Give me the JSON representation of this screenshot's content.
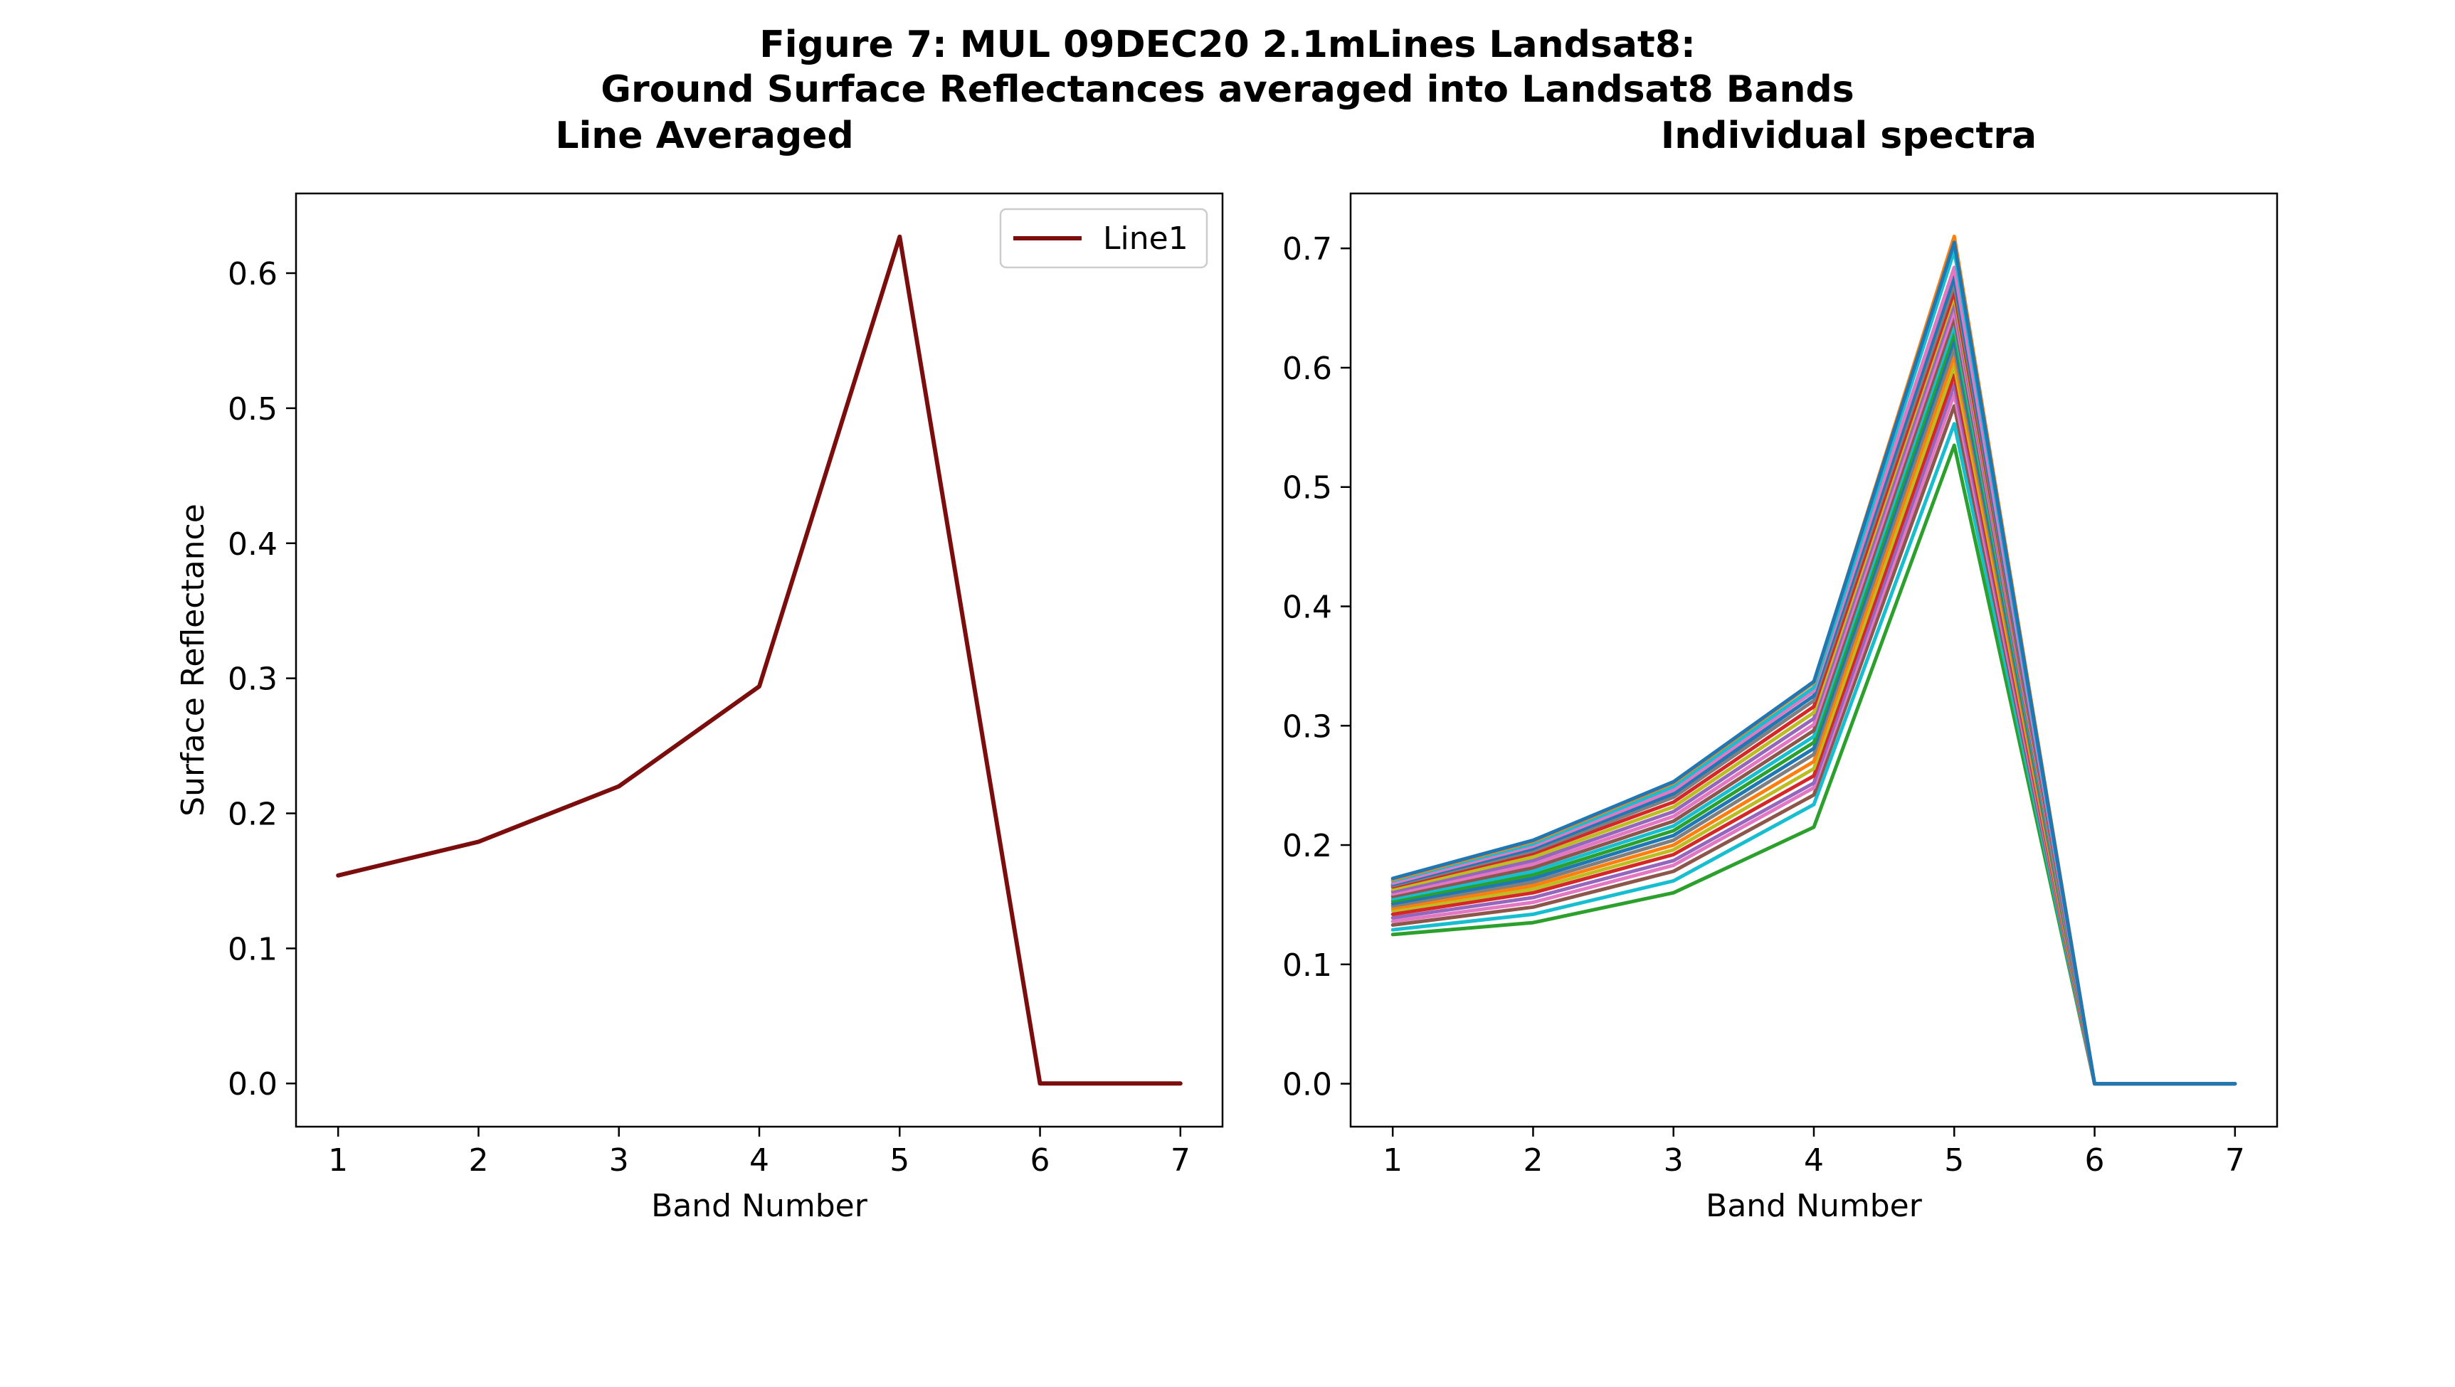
{
  "figure": {
    "title_line1": "Figure 7: MUL 09DEC20 2.1mLines Landsat8:",
    "title_line2": "Ground Surface Reflectances averaged into Landsat8 Bands"
  },
  "chart_data": [
    {
      "type": "line",
      "title": "Line Averaged",
      "xlabel": "Band Number",
      "ylabel": "Surface Reflectance",
      "x": [
        1,
        2,
        3,
        4,
        5,
        6,
        7
      ],
      "xlim": [
        0.7,
        7.3
      ],
      "ylim": [
        -0.032,
        0.659
      ],
      "xticks": [
        1,
        2,
        3,
        4,
        5,
        6,
        7
      ],
      "yticks": [
        0.0,
        0.1,
        0.2,
        0.3,
        0.4,
        0.5,
        0.6
      ],
      "legend_position": "top-right",
      "grid": false,
      "series": [
        {
          "name": "Line1",
          "color": "#7b0d0d",
          "values": [
            0.154,
            0.179,
            0.22,
            0.294,
            0.627,
            0.0,
            0.0
          ]
        }
      ]
    },
    {
      "type": "line",
      "title": "Individual spectra",
      "xlabel": "Band Number",
      "ylabel": "",
      "x": [
        1,
        2,
        3,
        4,
        5,
        6,
        7
      ],
      "xlim": [
        0.7,
        7.3
      ],
      "ylim": [
        -0.036,
        0.746
      ],
      "xticks": [
        1,
        2,
        3,
        4,
        5,
        6,
        7
      ],
      "yticks": [
        0.0,
        0.1,
        0.2,
        0.3,
        0.4,
        0.5,
        0.6,
        0.7
      ],
      "grid": false,
      "series": [
        {
          "color": "#2ca02c",
          "values": [
            0.125,
            0.135,
            0.16,
            0.215,
            0.535,
            0.0,
            0.0
          ]
        },
        {
          "color": "#17becf",
          "values": [
            0.129,
            0.142,
            0.17,
            0.234,
            0.553,
            0.0,
            0.0
          ]
        },
        {
          "color": "#8c564b",
          "values": [
            0.133,
            0.148,
            0.178,
            0.242,
            0.568,
            0.0,
            0.0
          ]
        },
        {
          "color": "#e377c2",
          "values": [
            0.136,
            0.152,
            0.183,
            0.248,
            0.578,
            0.0,
            0.0
          ]
        },
        {
          "color": "#9467bd",
          "values": [
            0.139,
            0.156,
            0.187,
            0.252,
            0.586,
            0.0,
            0.0
          ]
        },
        {
          "color": "#d62728",
          "values": [
            0.142,
            0.16,
            0.192,
            0.258,
            0.594,
            0.0,
            0.0
          ]
        },
        {
          "color": "#bcbd22",
          "values": [
            0.145,
            0.163,
            0.196,
            0.264,
            0.602,
            0.0,
            0.0
          ]
        },
        {
          "color": "#ff7f0e",
          "values": [
            0.147,
            0.166,
            0.2,
            0.27,
            0.61,
            0.0,
            0.0
          ]
        },
        {
          "color": "#7f7f7f",
          "values": [
            0.149,
            0.169,
            0.204,
            0.276,
            0.617,
            0.0,
            0.0
          ]
        },
        {
          "color": "#1f77b4",
          "values": [
            0.151,
            0.172,
            0.208,
            0.281,
            0.624,
            0.0,
            0.0
          ]
        },
        {
          "color": "#2ca02c",
          "values": [
            0.153,
            0.175,
            0.212,
            0.286,
            0.63,
            0.0,
            0.0
          ]
        },
        {
          "color": "#17becf",
          "values": [
            0.155,
            0.178,
            0.216,
            0.291,
            0.636,
            0.0,
            0.0
          ]
        },
        {
          "color": "#8c564b",
          "values": [
            0.157,
            0.181,
            0.22,
            0.296,
            0.642,
            0.0,
            0.0
          ]
        },
        {
          "color": "#e377c2",
          "values": [
            0.159,
            0.184,
            0.224,
            0.301,
            0.648,
            0.0,
            0.0
          ]
        },
        {
          "color": "#9467bd",
          "values": [
            0.161,
            0.187,
            0.228,
            0.306,
            0.654,
            0.0,
            0.0
          ]
        },
        {
          "color": "#bcbd22",
          "values": [
            0.163,
            0.19,
            0.232,
            0.311,
            0.66,
            0.0,
            0.0
          ]
        },
        {
          "color": "#d62728",
          "values": [
            0.165,
            0.193,
            0.236,
            0.316,
            0.664,
            0.0,
            0.0
          ]
        },
        {
          "color": "#7f7f7f",
          "values": [
            0.166,
            0.195,
            0.24,
            0.321,
            0.67,
            0.0,
            0.0
          ]
        },
        {
          "color": "#1f77b4",
          "values": [
            0.167,
            0.197,
            0.243,
            0.325,
            0.676,
            0.0,
            0.0
          ]
        },
        {
          "color": "#e377c2",
          "values": [
            0.168,
            0.199,
            0.246,
            0.329,
            0.684,
            0.0,
            0.0
          ]
        },
        {
          "color": "#17becf",
          "values": [
            0.17,
            0.201,
            0.249,
            0.332,
            0.698,
            0.0,
            0.0
          ]
        },
        {
          "color": "#ff7f0e",
          "values": [
            0.171,
            0.203,
            0.252,
            0.336,
            0.71,
            0.0,
            0.0
          ]
        },
        {
          "color": "#1f77b4",
          "values": [
            0.172,
            0.204,
            0.253,
            0.337,
            0.705,
            0.0,
            0.0
          ]
        }
      ]
    }
  ]
}
